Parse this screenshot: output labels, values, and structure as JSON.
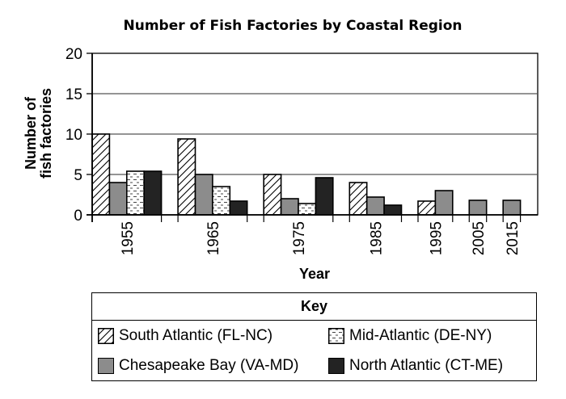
{
  "chart_data": {
    "type": "bar",
    "title": "Number of Fish Factories by Coastal Region",
    "xlabel": "Year",
    "ylabel_lines": [
      "Number of",
      "fish factories"
    ],
    "ylim": [
      0,
      20
    ],
    "yticks": [
      0,
      5,
      10,
      15,
      20
    ],
    "grid": true,
    "categories": [
      "1955",
      "1965",
      "1975",
      "1985",
      "1995",
      "2005",
      "2015"
    ],
    "series": [
      {
        "name": "South Atlantic (FL-NC)",
        "pattern": "diagonal-hatch",
        "color": "#ffffff",
        "values": [
          10,
          9.4,
          5,
          4,
          1.7,
          null,
          null
        ]
      },
      {
        "name": "Chesapeake Bay (VA-MD)",
        "pattern": "solid",
        "color": "#8c8c8c",
        "values": [
          4,
          5,
          2,
          2.2,
          3,
          1.8,
          1.8
        ]
      },
      {
        "name": "Mid-Atlantic (DE-NY)",
        "pattern": "dotted-dash",
        "color": "#ffffff",
        "values": [
          5.4,
          3.5,
          1.4,
          null,
          null,
          null,
          null
        ]
      },
      {
        "name": "North Atlantic (CT-ME)",
        "pattern": "solid",
        "color": "#232323",
        "values": [
          5.4,
          1.7,
          4.6,
          1.2,
          null,
          null,
          null
        ]
      }
    ],
    "legend": {
      "title": "Key",
      "placement": "bottom",
      "order": [
        "South Atlantic (FL-NC)",
        "Mid-Atlantic (DE-NY)",
        "Chesapeake Bay (VA-MD)",
        "North Atlantic (CT-ME)"
      ]
    }
  }
}
